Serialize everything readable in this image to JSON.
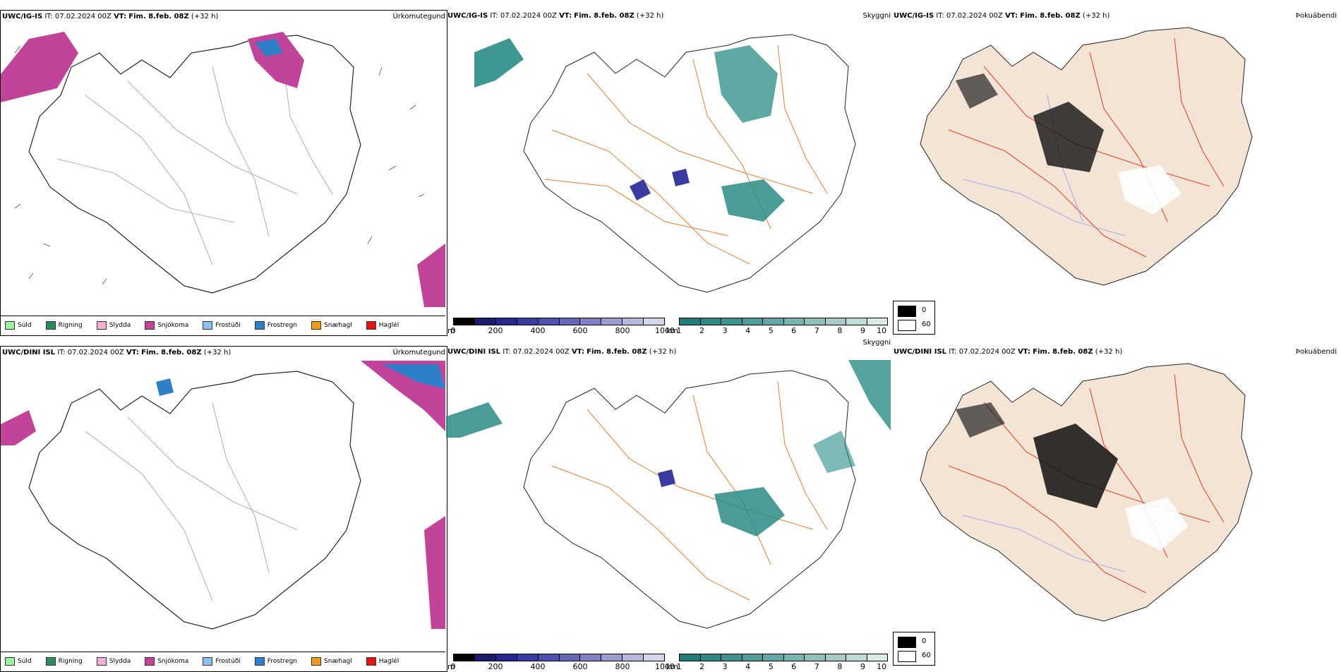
{
  "rows": [
    {
      "model": "UWC/IG-IS",
      "it_label": "IT:",
      "it_value": "07.02.2024 00Z",
      "vt_label": "VT:",
      "vt_value": "Fim. 8.feb. 08Z",
      "lead": "(+32 h)"
    },
    {
      "model": "UWC/DINI ISL",
      "it_label": "IT:",
      "it_value": "07.02.2024 00Z",
      "vt_label": "VT:",
      "vt_value": "Fim. 8.feb. 08Z",
      "lead": "(+32 h)"
    }
  ],
  "panel_titles": {
    "precip": "Úrkomutegund",
    "visibility": "Skyggni",
    "fog": "Þokuábendi"
  },
  "precip_legend": [
    {
      "label": "Súld",
      "color": "#9ff09f"
    },
    {
      "label": "Rigning",
      "color": "#2e8b57"
    },
    {
      "label": "Slydda",
      "color": "#f5b0d8"
    },
    {
      "label": "Snjókoma",
      "color": "#c2449a"
    },
    {
      "label": "Frostúði",
      "color": "#8fc1ef"
    },
    {
      "label": "Frostregn",
      "color": "#2f7fc8"
    },
    {
      "label": "Snæhagl",
      "color": "#f39a1d"
    },
    {
      "label": "Haglél",
      "color": "#e51414"
    }
  ],
  "ceiling_bar": {
    "unit": "m",
    "ticks": [
      "0",
      "200",
      "400",
      "600",
      "800",
      "1000"
    ],
    "colors": [
      "#000000",
      "#1a1a6e",
      "#27278f",
      "#3a3aa3",
      "#4f4fae",
      "#6767b8",
      "#8080c4",
      "#9c9cd0",
      "#b8b8dd",
      "#d4d4ea"
    ]
  },
  "visibility_bar": {
    "unit": "km",
    "ticks": [
      "1",
      "2",
      "3",
      "4",
      "5",
      "6",
      "7",
      "8",
      "9",
      "10"
    ],
    "colors": [
      "#1f7f78",
      "#2d8982",
      "#3d938c",
      "#4f9d97",
      "#63a8a2",
      "#78b4ae",
      "#8fc0bb",
      "#a7ccc8",
      "#c0dad6",
      "#dbe9e7"
    ]
  },
  "fog_legend": {
    "labels": [
      "0",
      "60"
    ],
    "colors": [
      "#000000",
      "#ffffff"
    ]
  },
  "map_colors": {
    "land": "#f3e4d6",
    "road": "#e87c2a",
    "river": "#8a9cf0",
    "teal": "#2a8c85",
    "snow": "#c2449a",
    "frz": "#2f7fc8"
  }
}
